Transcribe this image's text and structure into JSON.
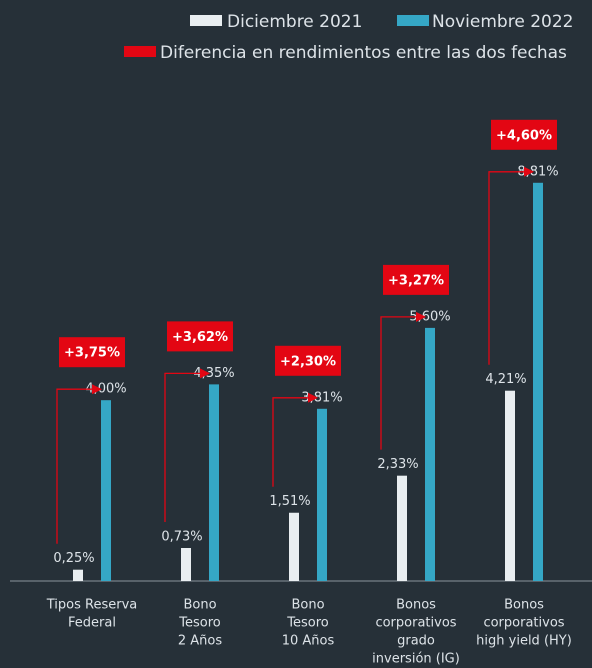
{
  "chart_data": {
    "type": "bar",
    "categories": [
      [
        "Tipos Reserva",
        "Federal"
      ],
      [
        "Bono",
        "Tesoro",
        "2 Años"
      ],
      [
        "Bono",
        "Tesoro",
        "10 Años"
      ],
      [
        "Bonos",
        "corporativos",
        "grado",
        "inversión (IG)"
      ],
      [
        "Bonos",
        "corporativos",
        "high yield (HY)"
      ]
    ],
    "series": [
      {
        "name": "Diciembre 2021",
        "color": "#e9eef1",
        "values": [
          0.25,
          0.73,
          1.51,
          2.33,
          4.21
        ],
        "value_labels": [
          "0,25%",
          "0,73%",
          "1,51%",
          "2,33%",
          "4,21%"
        ]
      },
      {
        "name": "Noviembre 2022",
        "color": "#35a7c6",
        "values": [
          4.0,
          4.35,
          3.81,
          5.6,
          8.81
        ],
        "value_labels": [
          "4,00%",
          "4,35%",
          "3,81%",
          "5,60%",
          "8,81%"
        ]
      }
    ],
    "differences": {
      "name": "Diferencia en rendimientos entre las dos fechas",
      "color": "#e30613",
      "values": [
        3.75,
        3.62,
        2.3,
        3.27,
        4.6
      ],
      "value_labels": [
        "+3,75%",
        "+3,62%",
        "+2,30%",
        "+3,27%",
        "+4,60%"
      ]
    },
    "ylim": [
      0,
      10
    ]
  }
}
